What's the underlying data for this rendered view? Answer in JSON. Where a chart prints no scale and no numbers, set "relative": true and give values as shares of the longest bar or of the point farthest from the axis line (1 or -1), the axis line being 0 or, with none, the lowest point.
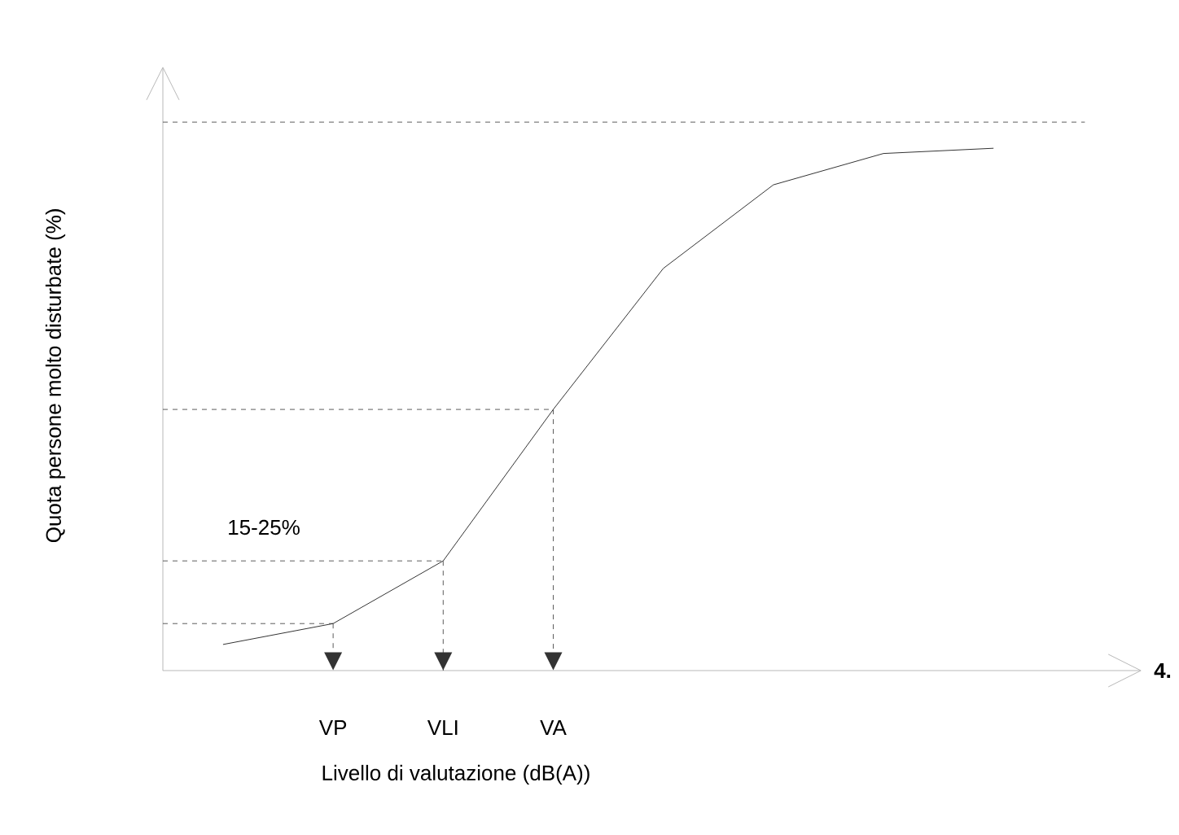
{
  "chart_data": {
    "type": "line",
    "relative": true,
    "color": "#000000",
    "tick_labels": "x",
    "categories": [
      null,
      "VP",
      "VLI",
      "VA",
      null,
      null,
      null,
      null
    ],
    "values": [
      0.05,
      0.09,
      0.21,
      0.5,
      0.77,
      0.93,
      0.99,
      1
    ],
    "xlabel": "Livello di valutazione (dB(A))",
    "ylabel": "Quota persone molto disturbate (%)",
    "ref_lines": [
      {
        "axis": "y",
        "value": 1.05,
        "line_style": "dashed"
      },
      {
        "axis": "y",
        "value": 0.5,
        "line_style": "dashed"
      },
      {
        "axis": "y",
        "value": 0.21,
        "line_style": "dashed"
      },
      {
        "axis": "y",
        "value": 0.09,
        "line_style": "dashed"
      },
      {
        "axis": "x",
        "value": "VP",
        "line_style": "dashed"
      },
      {
        "axis": "x",
        "value": "VLI",
        "line_style": "dashed"
      },
      {
        "axis": "x",
        "value": "VA",
        "line_style": "dashed"
      }
    ],
    "annotations": [
      "15-25%",
      "4."
    ]
  }
}
